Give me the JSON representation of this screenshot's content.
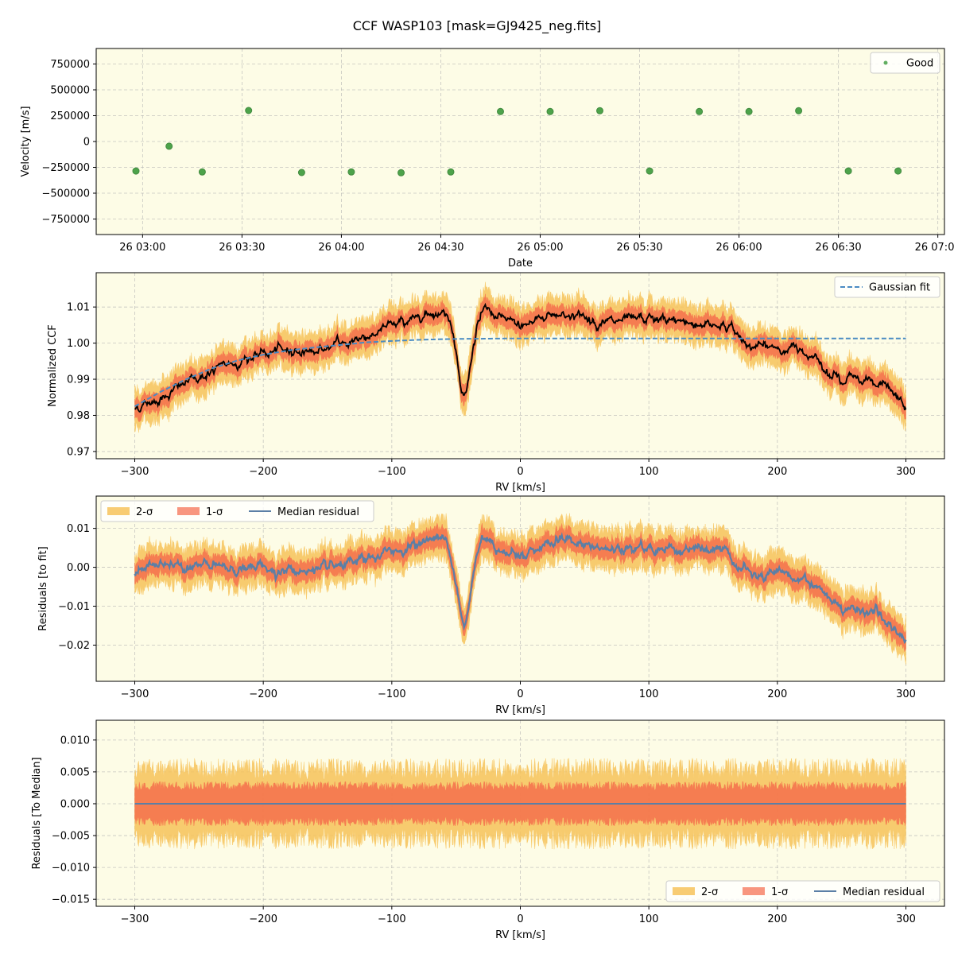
{
  "figure": {
    "title": "CCF WASP103 [mask=GJ9425_neg.fits]",
    "colors": {
      "panel_bg": "#fdfce6",
      "grid": "#b0b0b0",
      "good": "#3a9a3a",
      "fit": "#4a8bc2",
      "ccf": "#000000",
      "band2": "#f7c35a",
      "band1": "#f56a4a",
      "median": "#5b7fa6"
    }
  },
  "chart_data": [
    {
      "id": "velocity",
      "type": "scatter",
      "xlabel": "Date",
      "ylabel": "Velocity [m/s]",
      "x_ticks": [
        "26 03:00",
        "26 03:30",
        "26 04:00",
        "26 04:30",
        "26 05:00",
        "26 05:30",
        "26 06:00",
        "26 06:30",
        "26 07:00"
      ],
      "x_tick_minutes": [
        180,
        210,
        240,
        270,
        300,
        330,
        360,
        390,
        420
      ],
      "xlim_minutes": [
        166,
        422
      ],
      "y_ticks": [
        750000,
        500000,
        250000,
        0,
        -250000,
        -500000,
        -750000
      ],
      "y_tick_labels": [
        "750000",
        "500000",
        "250000",
        "0",
        "−250000",
        "−500000",
        "−750000"
      ],
      "ylim": [
        -900000,
        900000
      ],
      "grid": true,
      "legend": {
        "position": "top-right",
        "entries": [
          "Good"
        ]
      },
      "series": [
        {
          "name": "Good",
          "x_minutes": [
            178,
            188,
            198,
            212,
            228,
            243,
            258,
            273,
            288,
            303,
            318,
            333,
            348,
            363,
            378,
            393,
            408
          ],
          "values": [
            -285000,
            -45000,
            -295000,
            300000,
            -300000,
            -295000,
            -302000,
            -295000,
            290000,
            290000,
            298000,
            -285000,
            290000,
            290000,
            298000,
            -285000,
            -285000
          ]
        }
      ]
    },
    {
      "id": "ccf",
      "type": "line",
      "xlabel": "RV [km/s]",
      "ylabel": "Normalized CCF",
      "x_ticks": [
        -300,
        -200,
        -100,
        0,
        100,
        200,
        300
      ],
      "x_tick_labels": [
        "−300",
        "−200",
        "−100",
        "0",
        "100",
        "200",
        "300"
      ],
      "xlim": [
        -330,
        330
      ],
      "y_ticks": [
        0.97,
        0.98,
        0.99,
        1.0,
        1.01
      ],
      "y_tick_labels": [
        "0.97",
        "0.98",
        "0.99",
        "1.00",
        "1.01"
      ],
      "ylim": [
        0.968,
        1.0195
      ],
      "grid": true,
      "legend": {
        "position": "top-right",
        "entries": [
          "Gaussian fit"
        ]
      },
      "profile": {
        "rv": [
          -300,
          -280,
          -260,
          -240,
          -220,
          -200,
          -180,
          -160,
          -140,
          -120,
          -100,
          -90,
          -80,
          -70,
          -60,
          -55,
          -52,
          -49,
          -46,
          -44,
          -42,
          -40,
          -37,
          -34,
          -30,
          -25,
          -20,
          -10,
          0,
          10,
          20,
          30,
          40,
          60,
          80,
          100,
          120,
          140,
          160,
          170,
          180,
          200,
          220,
          230,
          240,
          250,
          260,
          280,
          300
        ],
        "values": [
          0.982,
          0.985,
          0.989,
          0.992,
          0.995,
          0.997,
          0.998,
          0.998,
          0.9995,
          1.002,
          1.005,
          1.006,
          1.0075,
          1.009,
          1.0085,
          1.007,
          1.003,
          0.996,
          0.988,
          0.985,
          0.986,
          0.991,
          0.998,
          1.004,
          1.008,
          1.009,
          1.007,
          1.006,
          1.005,
          1.006,
          1.008,
          1.008,
          1.008,
          1.006,
          1.0055,
          1.0065,
          1.006,
          1.0055,
          1.005,
          1.002,
          0.999,
          0.9985,
          0.998,
          0.997,
          0.993,
          0.989,
          0.991,
          0.989,
          0.982
        ]
      },
      "band1_halfwidth": 0.0025,
      "band2_halfwidth": 0.005,
      "fit": {
        "rv": [
          -300,
          -280,
          -260,
          -240,
          -220,
          -200,
          -180,
          -160,
          -140,
          -120,
          -100,
          -80,
          -60,
          -40,
          0,
          100,
          200,
          300
        ],
        "values": [
          0.9825,
          0.9865,
          0.99,
          0.993,
          0.9952,
          0.9968,
          0.998,
          0.9988,
          0.9995,
          1.0002,
          1.0006,
          1.0009,
          1.0011,
          1.0012,
          1.0013,
          1.0013,
          1.0013,
          1.0013
        ]
      },
      "series": [
        {
          "name": "Gaussian fit"
        }
      ]
    },
    {
      "id": "residuals_fit",
      "type": "line",
      "xlabel": "RV [km/s]",
      "ylabel": "Residuals [to fit]",
      "x_ticks": [
        -300,
        -200,
        -100,
        0,
        100,
        200,
        300
      ],
      "x_tick_labels": [
        "−300",
        "−200",
        "−100",
        "0",
        "100",
        "200",
        "300"
      ],
      "xlim": [
        -330,
        330
      ],
      "y_ticks": [
        0.01,
        0.0,
        -0.01,
        -0.02
      ],
      "y_tick_labels": [
        "0.01",
        "0.00",
        "−0.01",
        "−0.02"
      ],
      "ylim": [
        -0.0293,
        0.0183
      ],
      "grid": true,
      "legend": {
        "position": "top-left",
        "entries": [
          "2-σ",
          "1-σ",
          "Median residual"
        ]
      },
      "profile": {
        "rv": [
          -300,
          -280,
          -260,
          -240,
          -220,
          -200,
          -180,
          -160,
          -140,
          -120,
          -100,
          -90,
          -80,
          -70,
          -60,
          -55,
          -52,
          -49,
          -46,
          -44,
          -42,
          -40,
          -37,
          -34,
          -30,
          -25,
          -20,
          -10,
          0,
          10,
          20,
          30,
          40,
          60,
          80,
          100,
          120,
          140,
          160,
          170,
          180,
          200,
          220,
          230,
          240,
          250,
          260,
          280,
          300
        ],
        "values": [
          -0.001,
          0.0005,
          0.001,
          0.0,
          -0.0005,
          0.0,
          -0.001,
          -0.001,
          -0.0005,
          0.002,
          0.004,
          0.005,
          0.006,
          0.0075,
          0.007,
          0.0055,
          0.0015,
          -0.0055,
          -0.013,
          -0.016,
          -0.015,
          -0.0105,
          -0.003,
          0.003,
          0.007,
          0.008,
          0.006,
          0.004,
          0.0035,
          0.0045,
          0.0065,
          0.0068,
          0.0068,
          0.0045,
          0.004,
          0.0052,
          0.0048,
          0.0042,
          0.0037,
          0.0007,
          -0.0023,
          -0.0028,
          -0.0033,
          -0.0043,
          -0.0083,
          -0.0123,
          -0.0103,
          -0.0123,
          -0.0193
        ]
      },
      "band1_halfwidth": 0.0025,
      "band2_halfwidth": 0.005,
      "series": [
        {
          "name": "2-σ"
        },
        {
          "name": "1-σ"
        },
        {
          "name": "Median residual"
        }
      ]
    },
    {
      "id": "residuals_median",
      "type": "line",
      "xlabel": "RV [km/s]",
      "ylabel": "Residuals [To Median]",
      "x_ticks": [
        -300,
        -200,
        -100,
        0,
        100,
        200,
        300
      ],
      "x_tick_labels": [
        "−300",
        "−200",
        "−100",
        "0",
        "100",
        "200",
        "300"
      ],
      "xlim": [
        -330,
        330
      ],
      "y_ticks": [
        0.01,
        0.005,
        0.0,
        -0.005,
        -0.01,
        -0.015
      ],
      "y_tick_labels": [
        "0.010",
        "0.005",
        "0.000",
        "−0.005",
        "−0.010",
        "−0.015"
      ],
      "ylim": [
        -0.0161,
        0.0131
      ],
      "grid": true,
      "legend": {
        "position": "bottom-right",
        "entries": [
          "2-σ",
          "1-σ",
          "Median residual"
        ]
      },
      "profile": {
        "rv": [
          -300,
          300
        ],
        "values": [
          0.0,
          0.0
        ]
      },
      "band1_halfwidth": 0.0028,
      "band2_halfwidth": 0.0055,
      "series": [
        {
          "name": "2-σ"
        },
        {
          "name": "1-σ"
        },
        {
          "name": "Median residual"
        }
      ]
    }
  ]
}
